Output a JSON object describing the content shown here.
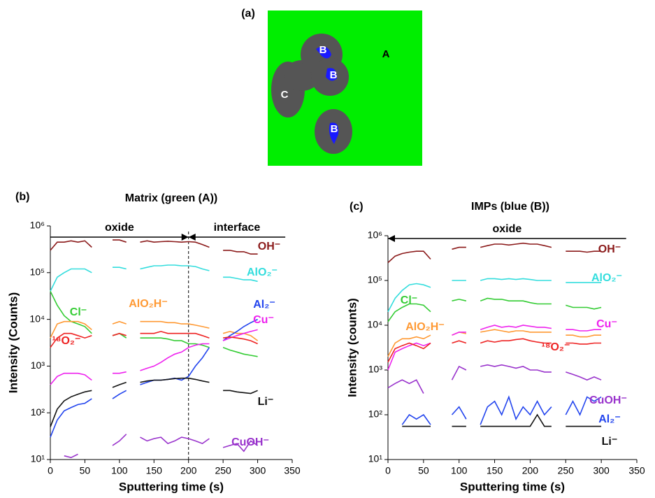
{
  "panel_labels": [
    "(a)",
    "(b)",
    "(c)"
  ],
  "diagram": {
    "labels": [
      "A",
      "B",
      "B",
      "C",
      "B"
    ]
  },
  "chart_data": [
    {
      "type": "line",
      "title": "Matrix (green (A))",
      "x_label": "Sputtering time (s)",
      "y_label": "Intensity (Counts)",
      "log_y": true,
      "xlim": [
        0,
        350
      ],
      "xticks": [
        0,
        50,
        100,
        150,
        200,
        250,
        300,
        350
      ],
      "ylim": [
        10,
        1000000
      ],
      "yticks": [
        {
          "value": 10,
          "label": "10¹"
        },
        {
          "value": 100,
          "label": "10²"
        },
        {
          "value": 1000,
          "label": "10³"
        },
        {
          "value": 10000,
          "label": "10⁴"
        },
        {
          "value": 100000,
          "label": "10⁵"
        },
        {
          "value": 1000000,
          "label": "10⁶"
        }
      ],
      "vline": 200,
      "arrows": [
        {
          "label": "oxide",
          "from": 0,
          "to": 200
        },
        {
          "label": "interface",
          "from": 340,
          "to": 200
        }
      ],
      "x": [
        0,
        10,
        20,
        30,
        40,
        50,
        60,
        70,
        80,
        90,
        100,
        110,
        120,
        130,
        140,
        150,
        160,
        170,
        180,
        190,
        200,
        210,
        220,
        230,
        240,
        250,
        260,
        270,
        280,
        290,
        300
      ],
      "series": [
        {
          "name": "OH⁻",
          "color": "#8b1a1a",
          "values": [
            300000,
            450000,
            450000,
            480000,
            450000,
            480000,
            350000,
            null,
            null,
            500000,
            500000,
            450000,
            null,
            450000,
            480000,
            450000,
            460000,
            470000,
            460000,
            450000,
            460000,
            450000,
            400000,
            350000,
            null,
            300000,
            300000,
            280000,
            280000,
            250000,
            250000
          ]
        },
        {
          "name": "AlO₂⁻",
          "color": "#33dddd",
          "values": [
            40000,
            80000,
            100000,
            120000,
            120000,
            120000,
            100000,
            null,
            null,
            130000,
            130000,
            120000,
            null,
            120000,
            130000,
            140000,
            140000,
            145000,
            145000,
            140000,
            140000,
            135000,
            120000,
            110000,
            null,
            80000,
            80000,
            75000,
            70000,
            70000,
            65000
          ]
        },
        {
          "name": "Cl⁻",
          "color": "#33cc33",
          "values": [
            40000,
            20000,
            12000,
            9000,
            8000,
            7000,
            5000,
            null,
            null,
            4500,
            5000,
            4000,
            null,
            4000,
            4000,
            4000,
            4000,
            3800,
            3500,
            3500,
            3000,
            3000,
            2800,
            2500,
            null,
            2500,
            2200,
            2000,
            1800,
            1700,
            1600
          ]
        },
        {
          "name": "AlO₂H⁻",
          "color": "#ff9933",
          "values": [
            4000,
            8000,
            9000,
            9000,
            9000,
            8000,
            6000,
            null,
            null,
            8000,
            9000,
            8000,
            null,
            9000,
            9000,
            9000,
            9000,
            8500,
            8500,
            8000,
            8000,
            7500,
            7000,
            6500,
            null,
            5000,
            5500,
            5000,
            5000,
            4500,
            3500
          ]
        },
        {
          "name": "Al₂⁻",
          "color": "#2244ee",
          "values": [
            30,
            70,
            110,
            130,
            150,
            160,
            200,
            null,
            null,
            200,
            250,
            300,
            null,
            400,
            450,
            500,
            500,
            520,
            550,
            500,
            600,
            1000,
            1500,
            2500,
            null,
            3500,
            4500,
            5500,
            7000,
            8500,
            10000
          ]
        },
        {
          "name": "Cu⁻",
          "color": "#ee22ee",
          "values": [
            400,
            600,
            700,
            700,
            700,
            650,
            500,
            null,
            null,
            700,
            700,
            750,
            null,
            800,
            900,
            1000,
            1200,
            1500,
            1800,
            2000,
            2500,
            2800,
            3000,
            3000,
            null,
            3500,
            4000,
            4500,
            5000,
            5500,
            6000
          ]
        },
        {
          "name": "¹⁸O₂⁻",
          "color": "#ee2222",
          "values": [
            2500,
            4000,
            5000,
            5000,
            4500,
            4000,
            4500,
            null,
            null,
            4500,
            5000,
            4500,
            null,
            5000,
            5000,
            5000,
            5500,
            5000,
            5000,
            5000,
            5000,
            5000,
            4500,
            4000,
            null,
            4000,
            4200,
            4000,
            3800,
            3500,
            3000
          ]
        },
        {
          "name": "Li⁻",
          "color": "#111111",
          "values": [
            50,
            120,
            180,
            220,
            250,
            280,
            300,
            null,
            null,
            350,
            400,
            450,
            null,
            450,
            480,
            500,
            500,
            520,
            540,
            550,
            550,
            520,
            480,
            450,
            null,
            300,
            300,
            280,
            270,
            260,
            300
          ]
        },
        {
          "name": "CuOH⁻",
          "color": "#9933cc",
          "values": [
            null,
            null,
            12,
            11,
            13,
            null,
            null,
            null,
            null,
            20,
            25,
            35,
            null,
            30,
            25,
            28,
            30,
            22,
            25,
            30,
            28,
            25,
            22,
            28,
            null,
            18,
            20,
            22,
            15,
            25,
            20
          ]
        }
      ]
    },
    {
      "type": "line",
      "title": "IMPs (blue (B))",
      "x_label": "Sputtering time (s)",
      "y_label": "Intensity (counts)",
      "log_y": true,
      "xlim": [
        0,
        350
      ],
      "xticks": [
        0,
        50,
        100,
        150,
        200,
        250,
        300,
        350
      ],
      "ylim": [
        10,
        1000000
      ],
      "yticks": [
        {
          "value": 10,
          "label": "10¹"
        },
        {
          "value": 100,
          "label": "10²"
        },
        {
          "value": 1000,
          "label": "10³"
        },
        {
          "value": 10000,
          "label": "10⁴"
        },
        {
          "value": 100000,
          "label": "10⁵"
        },
        {
          "value": 1000000,
          "label": "10⁶"
        }
      ],
      "arrows": [
        {
          "label": "oxide",
          "from": 335,
          "to": 0
        }
      ],
      "x": [
        0,
        10,
        20,
        30,
        40,
        50,
        60,
        70,
        80,
        90,
        100,
        110,
        120,
        130,
        140,
        150,
        160,
        170,
        180,
        190,
        200,
        210,
        220,
        230,
        240,
        250,
        260,
        270,
        280,
        290,
        300
      ],
      "series": [
        {
          "name": "OH⁻",
          "color": "#8b1a1a",
          "values": [
            250000,
            350000,
            400000,
            430000,
            450000,
            450000,
            300000,
            null,
            null,
            500000,
            550000,
            550000,
            null,
            550000,
            600000,
            650000,
            650000,
            620000,
            650000,
            680000,
            650000,
            650000,
            600000,
            550000,
            null,
            450000,
            450000,
            450000,
            430000,
            450000,
            450000
          ]
        },
        {
          "name": "AlO₂⁻",
          "color": "#33dddd",
          "values": [
            20000,
            40000,
            60000,
            80000,
            85000,
            80000,
            70000,
            null,
            null,
            100000,
            100000,
            100000,
            null,
            100000,
            110000,
            110000,
            105000,
            110000,
            105000,
            110000,
            105000,
            100000,
            100000,
            100000,
            null,
            90000,
            90000,
            90000,
            90000,
            90000,
            90000
          ]
        },
        {
          "name": "Cl⁻",
          "color": "#33cc33",
          "values": [
            12000,
            20000,
            25000,
            30000,
            30000,
            28000,
            20000,
            null,
            null,
            35000,
            38000,
            35000,
            null,
            35000,
            40000,
            38000,
            38000,
            35000,
            35000,
            35000,
            32000,
            30000,
            30000,
            30000,
            null,
            28000,
            25000,
            25000,
            25000,
            23000,
            25000
          ]
        },
        {
          "name": "AlO₂H⁻",
          "color": "#ff9933",
          "values": [
            2000,
            4000,
            5000,
            5000,
            5500,
            5000,
            6000,
            null,
            null,
            6000,
            7000,
            6500,
            null,
            7000,
            7500,
            8000,
            7500,
            7000,
            7500,
            7500,
            7000,
            7000,
            7000,
            7000,
            null,
            6000,
            6000,
            5500,
            5500,
            6000,
            6000
          ]
        },
        {
          "name": "Al₂⁻",
          "color": "#2244ee",
          "values": [
            null,
            null,
            60,
            100,
            80,
            100,
            60,
            null,
            null,
            100,
            150,
            80,
            null,
            60,
            150,
            200,
            100,
            250,
            80,
            150,
            100,
            200,
            100,
            150,
            null,
            100,
            200,
            100,
            250,
            200,
            250
          ]
        },
        {
          "name": "Cu⁻",
          "color": "#ee22ee",
          "values": [
            1000,
            2500,
            3000,
            3500,
            4000,
            3500,
            4000,
            null,
            null,
            6000,
            7000,
            7000,
            null,
            8000,
            9000,
            10000,
            9000,
            9500,
            9000,
            10000,
            9500,
            9000,
            9000,
            8500,
            null,
            8000,
            8000,
            7500,
            7500,
            8000,
            8000
          ]
        },
        {
          "name": "¹⁸O₂⁻",
          "color": "#ee2222",
          "values": [
            1500,
            3000,
            3500,
            4000,
            3500,
            3000,
            4000,
            null,
            null,
            4000,
            4500,
            4000,
            null,
            4000,
            4500,
            4200,
            4500,
            4500,
            4800,
            5000,
            4500,
            4200,
            4000,
            4000,
            null,
            4000,
            4000,
            3800,
            3800,
            4000,
            4000
          ]
        },
        {
          "name": "Li⁻",
          "color": "#111111",
          "values": [
            null,
            null,
            55,
            55,
            55,
            55,
            55,
            null,
            null,
            55,
            55,
            55,
            null,
            55,
            55,
            55,
            55,
            55,
            55,
            55,
            55,
            100,
            55,
            55,
            null,
            55,
            55,
            55,
            55,
            55,
            55
          ]
        },
        {
          "name": "CuOH⁻",
          "color": "#9933cc",
          "values": [
            400,
            500,
            600,
            500,
            600,
            300,
            null,
            null,
            null,
            600,
            1200,
            1000,
            null,
            1200,
            1300,
            1200,
            1300,
            1200,
            1100,
            1200,
            1000,
            1000,
            900,
            900,
            null,
            900,
            800,
            700,
            600,
            700,
            600
          ]
        }
      ]
    }
  ]
}
